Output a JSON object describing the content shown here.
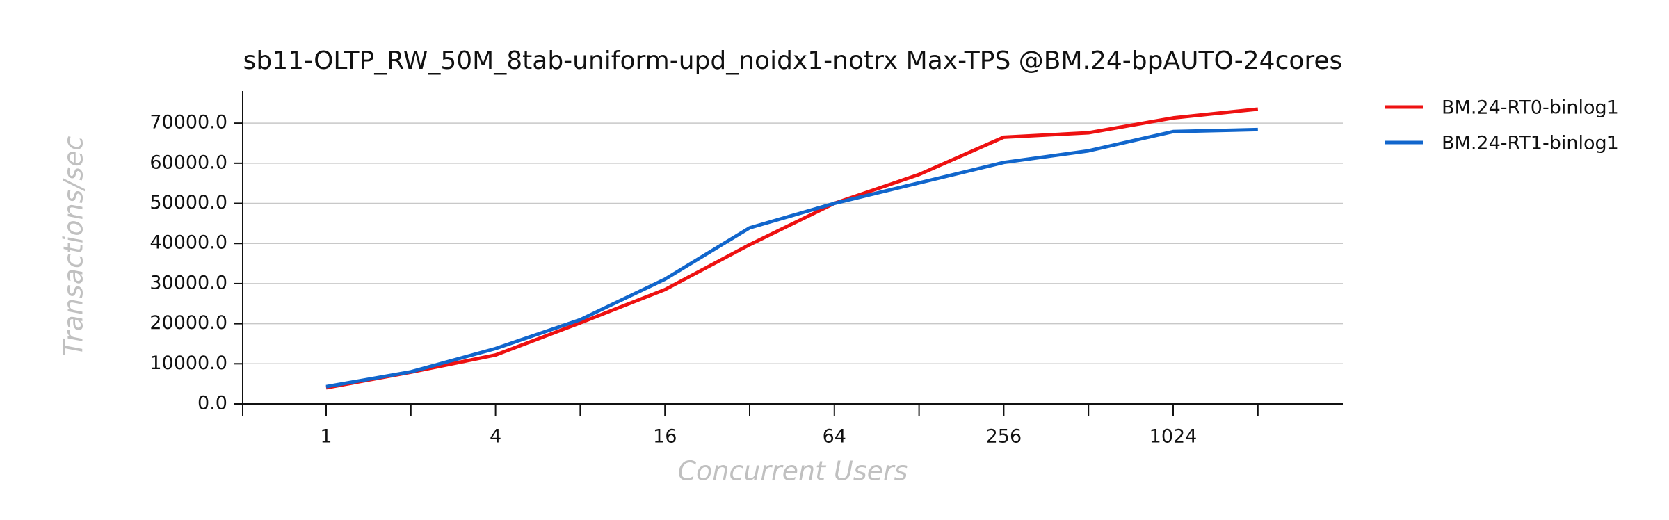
{
  "chart_data": {
    "type": "line",
    "title": "sb11-OLTP_RW_50M_8tab-uniform-upd_noidx1-notrx Max-TPS @BM.24-bpAUTO-24cores",
    "xlabel": "Concurrent Users",
    "ylabel": "Transactions/sec",
    "categories": [
      "1",
      null,
      "4",
      null,
      "16",
      null,
      "64",
      null,
      "256",
      null,
      "1024",
      null
    ],
    "series": [
      {
        "name": "BM.24-RT0-binlog1",
        "color": "#ee1111",
        "values": [
          4000,
          7900,
          12200,
          20200,
          28500,
          39700,
          50000,
          57200,
          66500,
          67600,
          71300,
          73500
        ]
      },
      {
        "name": "BM.24-RT1-binlog1",
        "color": "#1166cc",
        "values": [
          4300,
          8000,
          13800,
          21000,
          31100,
          43900,
          50000,
          55100,
          60200,
          63100,
          67900,
          68400
        ]
      }
    ],
    "ylim": [
      0,
      78000
    ],
    "yticks": [
      {
        "value": 0,
        "label": "0.0"
      },
      {
        "value": 10000,
        "label": "10000.0"
      },
      {
        "value": 20000,
        "label": "20000.0"
      },
      {
        "value": 30000,
        "label": "30000.0"
      },
      {
        "value": 40000,
        "label": "40000.0"
      },
      {
        "value": 50000,
        "label": "50000.0"
      },
      {
        "value": 60000,
        "label": "60000.0"
      },
      {
        "value": 70000,
        "label": "70000.0"
      }
    ],
    "grid": true,
    "legend": "outside-right"
  }
}
